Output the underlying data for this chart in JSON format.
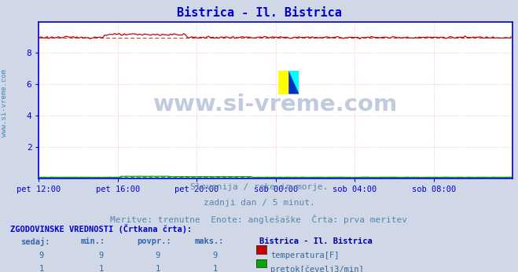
{
  "title": "Bistrica - Il. Bistrica",
  "title_color": "#0000cc",
  "bg_color": "#d0d8e8",
  "plot_bg_color": "#ffffff",
  "grid_color": "#ff9999",
  "axis_color": "#0000cc",
  "tick_label_color": "#336699",
  "watermark_text": "www.si-vreme.com",
  "watermark_color": "#aabbcc",
  "ylabel_text": "www.si-vreme.com",
  "ylabel_color": "#4488bb",
  "subtitle_line1": "Slovenija / reke in morje.",
  "subtitle_line2": "zadnji dan / 5 minut.",
  "subtitle_line3": "Meritve: trenutne  Enote: anglešaške  Črta: prva meritev",
  "subtitle_color": "#5588aa",
  "xlim": [
    0,
    288
  ],
  "ylim": [
    0,
    10
  ],
  "yticks": [
    2,
    4,
    6,
    8
  ],
  "xtick_labels": [
    "pet 12:00",
    "pet 16:00",
    "pet 20:00",
    "sob 00:00",
    "sob 04:00",
    "sob 08:00"
  ],
  "xtick_positions": [
    0,
    48,
    96,
    144,
    192,
    240
  ],
  "temp_value": 9.0,
  "flow_value": 0.06,
  "temp_color": "#cc0000",
  "flow_color": "#00aa00",
  "table_header_color": "#0000cc",
  "table_label_color": "#3366aa",
  "table_value_color": "#336699",
  "table_title_color": "#000099",
  "legend_temp_color": "#cc0000",
  "legend_flow_color": "#00aa00",
  "table_header": "ZGODOVINSKE VREDNOSTI (Črtkana črta):",
  "col_headers": [
    "sedaj:",
    "min.:",
    "povpr.:",
    "maks.:"
  ],
  "station_header": "Bistrica - Il. Bistrica",
  "row1_vals": [
    "9",
    "9",
    "9",
    "9"
  ],
  "row1_label": "temperatura[F]",
  "row2_vals": [
    "1",
    "1",
    "1",
    "1"
  ],
  "row2_label": "pretok[čevelj3/min]"
}
